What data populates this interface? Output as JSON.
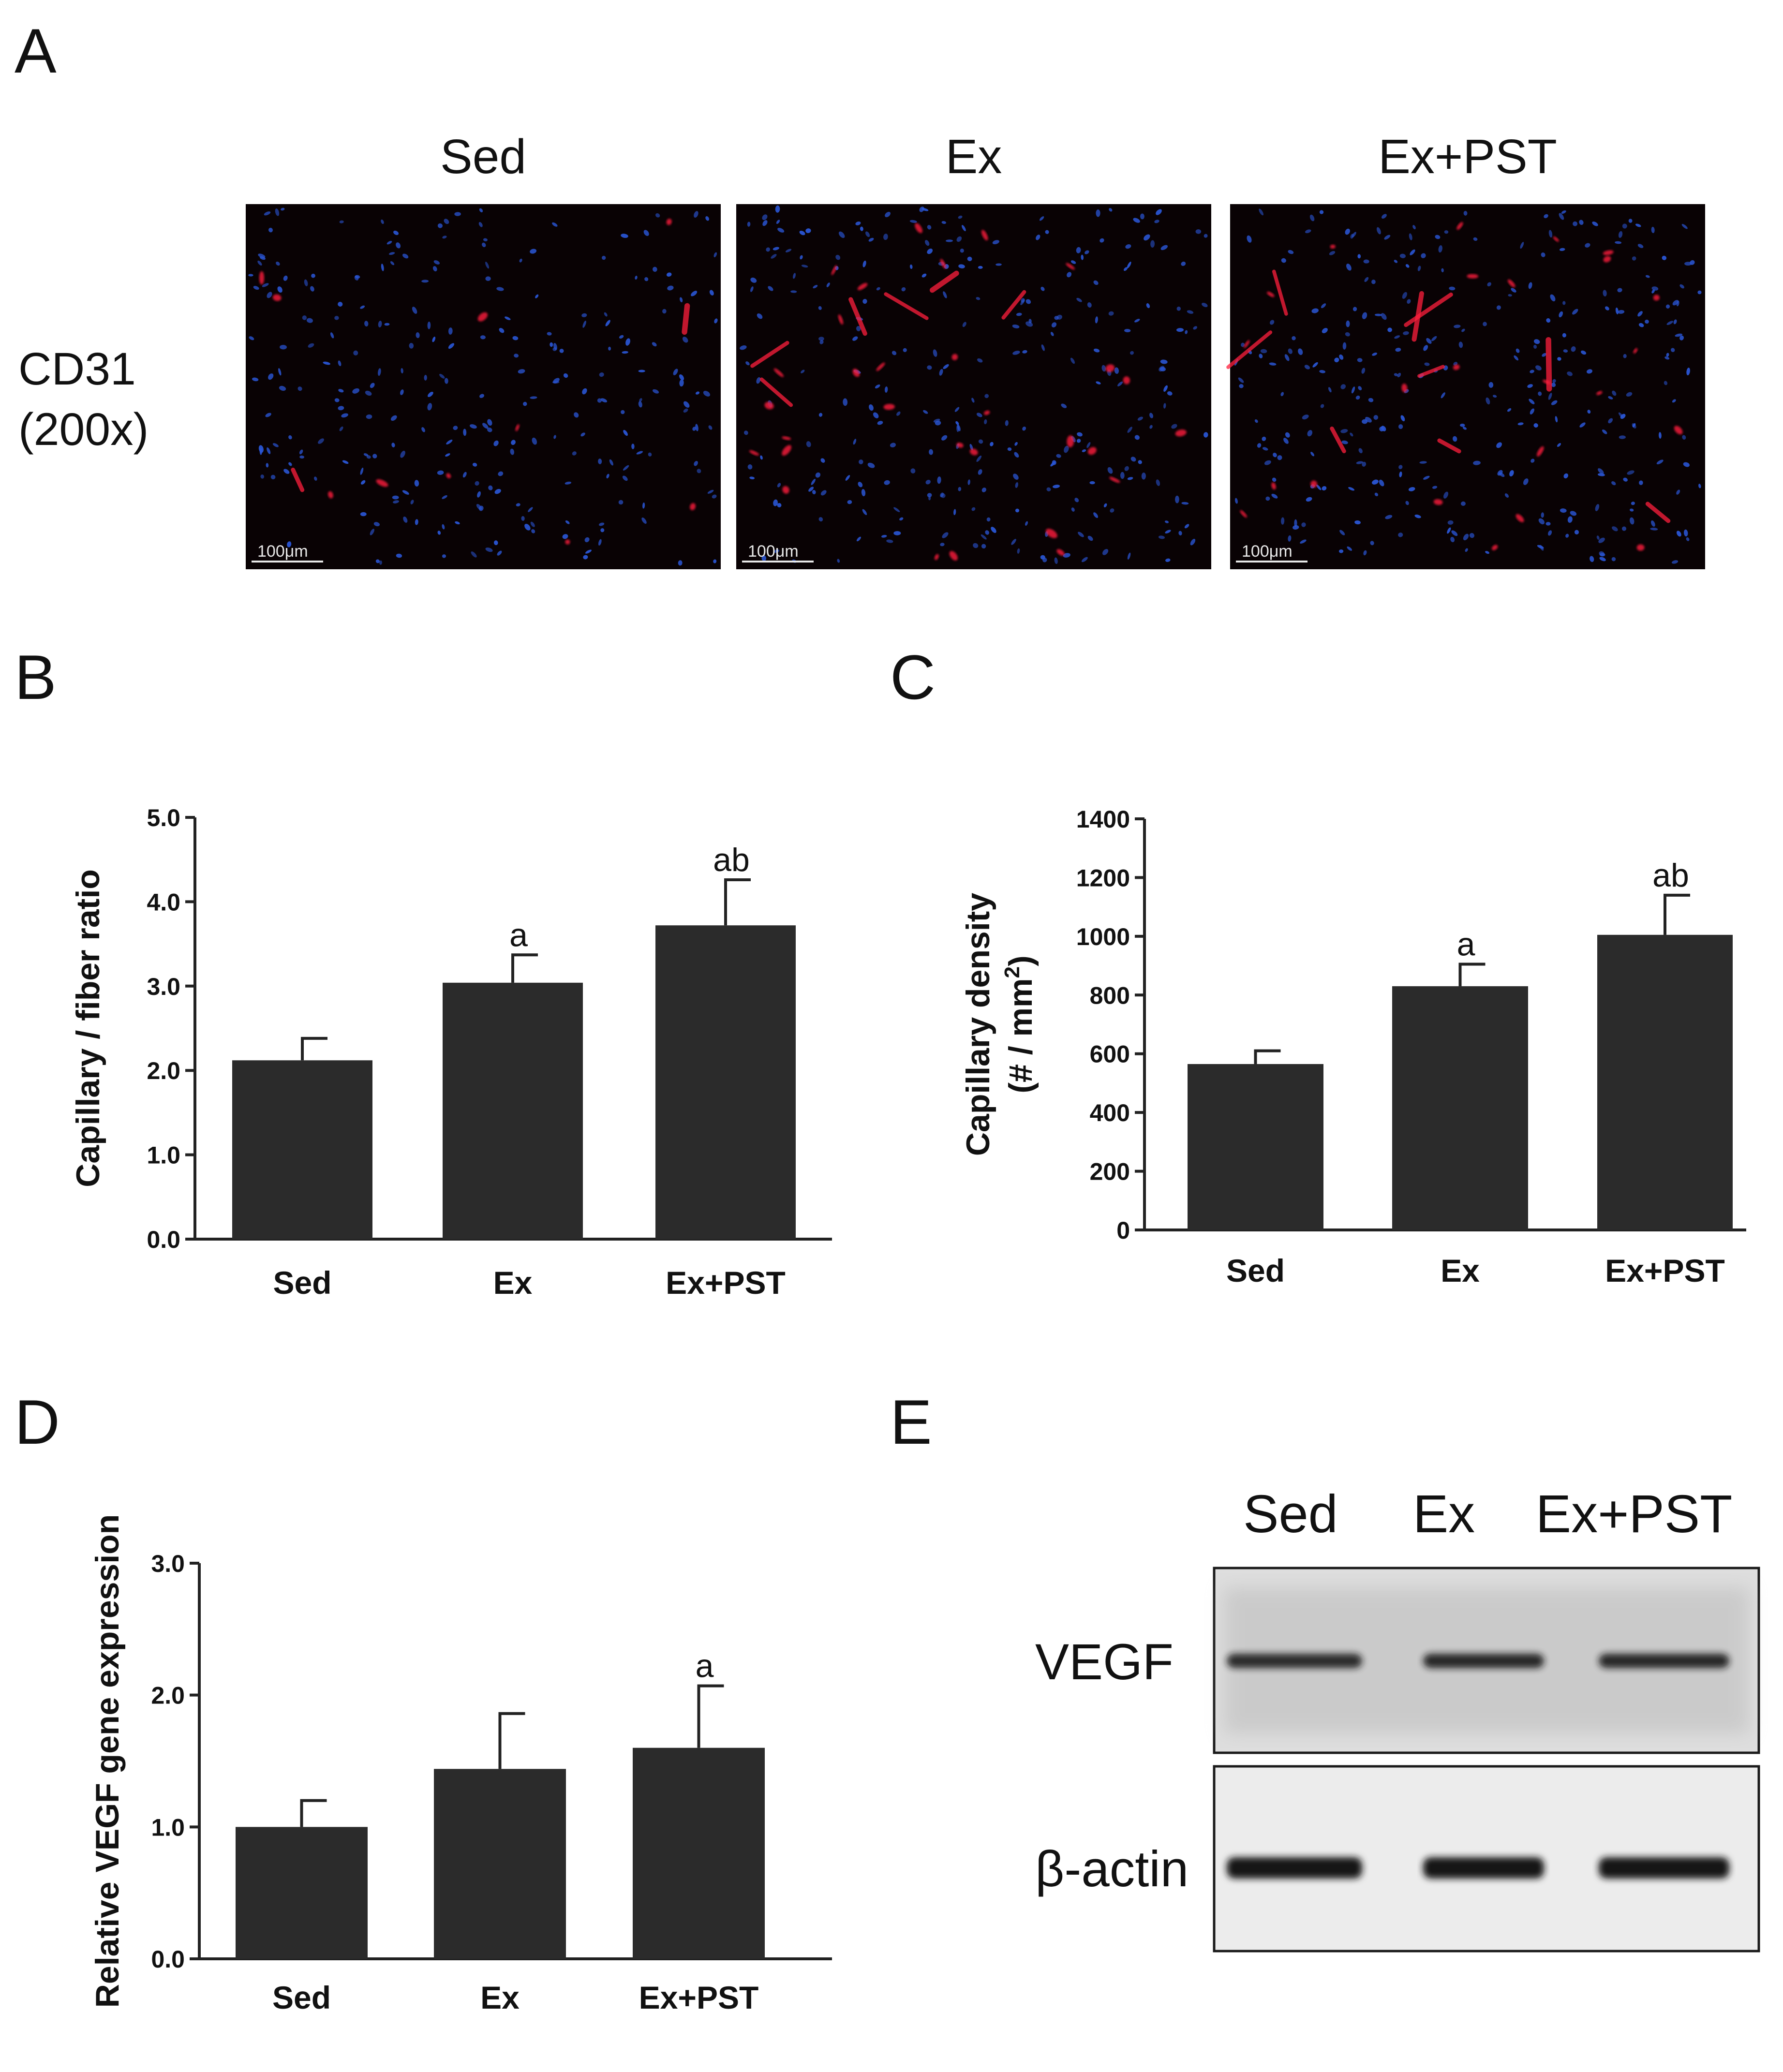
{
  "panel_letters": {
    "a": "A",
    "b": "B",
    "c": "C",
    "d": "D",
    "e": "E"
  },
  "micrographs": {
    "row_label_line1": "CD31",
    "row_label_line2": "(200x)",
    "scalebar": "100μm",
    "images": [
      {
        "label": "Sed",
        "seed": 11,
        "red_blobs": 10,
        "blue_dots": 260,
        "red_streaks": 2
      },
      {
        "label": "Ex",
        "seed": 23,
        "red_blobs": 30,
        "blue_dots": 290,
        "red_streaks": 6
      },
      {
        "label": "Ex+PST",
        "seed": 37,
        "red_blobs": 24,
        "blue_dots": 320,
        "red_streaks": 9
      }
    ],
    "colors": {
      "background": "#090204",
      "nuclei": "#2a56d6",
      "cd31": "#ff1f3d"
    }
  },
  "chart_data": [
    {
      "panel": "B",
      "type": "bar",
      "categories": [
        "Sed",
        "Ex",
        "Ex+PST"
      ],
      "values": [
        2.12,
        3.04,
        3.72
      ],
      "errors": [
        0.26,
        0.33,
        0.54
      ],
      "annotations": [
        "",
        "a",
        "ab"
      ],
      "ylabel": "Capillary / fiber ratio",
      "ylim": [
        0,
        5.0
      ],
      "yticks": [
        "0.0",
        "1.0",
        "2.0",
        "3.0",
        "4.0",
        "5.0"
      ],
      "bar_color": "#2b2b2b"
    },
    {
      "panel": "C",
      "type": "bar",
      "categories": [
        "Sed",
        "Ex",
        "Ex+PST"
      ],
      "values": [
        565,
        830,
        1005
      ],
      "errors": [
        45,
        75,
        135
      ],
      "annotations": [
        "",
        "a",
        "ab"
      ],
      "ylabel": "Capillary density",
      "ylabel_line2_prefix": "(# / mm",
      "ylabel_line2_sup": "2",
      "ylabel_line2_suffix": ")",
      "ylim": [
        0,
        1400
      ],
      "yticks": [
        "0",
        "200",
        "400",
        "600",
        "800",
        "1000",
        "1200",
        "1400"
      ],
      "bar_color": "#2b2b2b"
    },
    {
      "panel": "D",
      "type": "bar",
      "categories": [
        "Sed",
        "Ex",
        "Ex+PST"
      ],
      "values": [
        1.0,
        1.44,
        1.6
      ],
      "errors": [
        0.2,
        0.42,
        0.47
      ],
      "annotations": [
        "",
        "",
        "a"
      ],
      "ylabel": "Relative VEGF gene expression",
      "ylim": [
        0,
        3.0
      ],
      "yticks": [
        "0.0",
        "1.0",
        "2.0",
        "3.0"
      ],
      "bar_color": "#2b2b2b"
    }
  ],
  "western_blot": {
    "lanes": [
      "Sed",
      "Ex",
      "Ex+PST"
    ],
    "rows": [
      {
        "label": "VEGF",
        "band_intensity": [
          0.88,
          0.9,
          0.9
        ]
      },
      {
        "label": "β-actin",
        "band_intensity": [
          1.0,
          1.0,
          1.0
        ]
      }
    ]
  }
}
